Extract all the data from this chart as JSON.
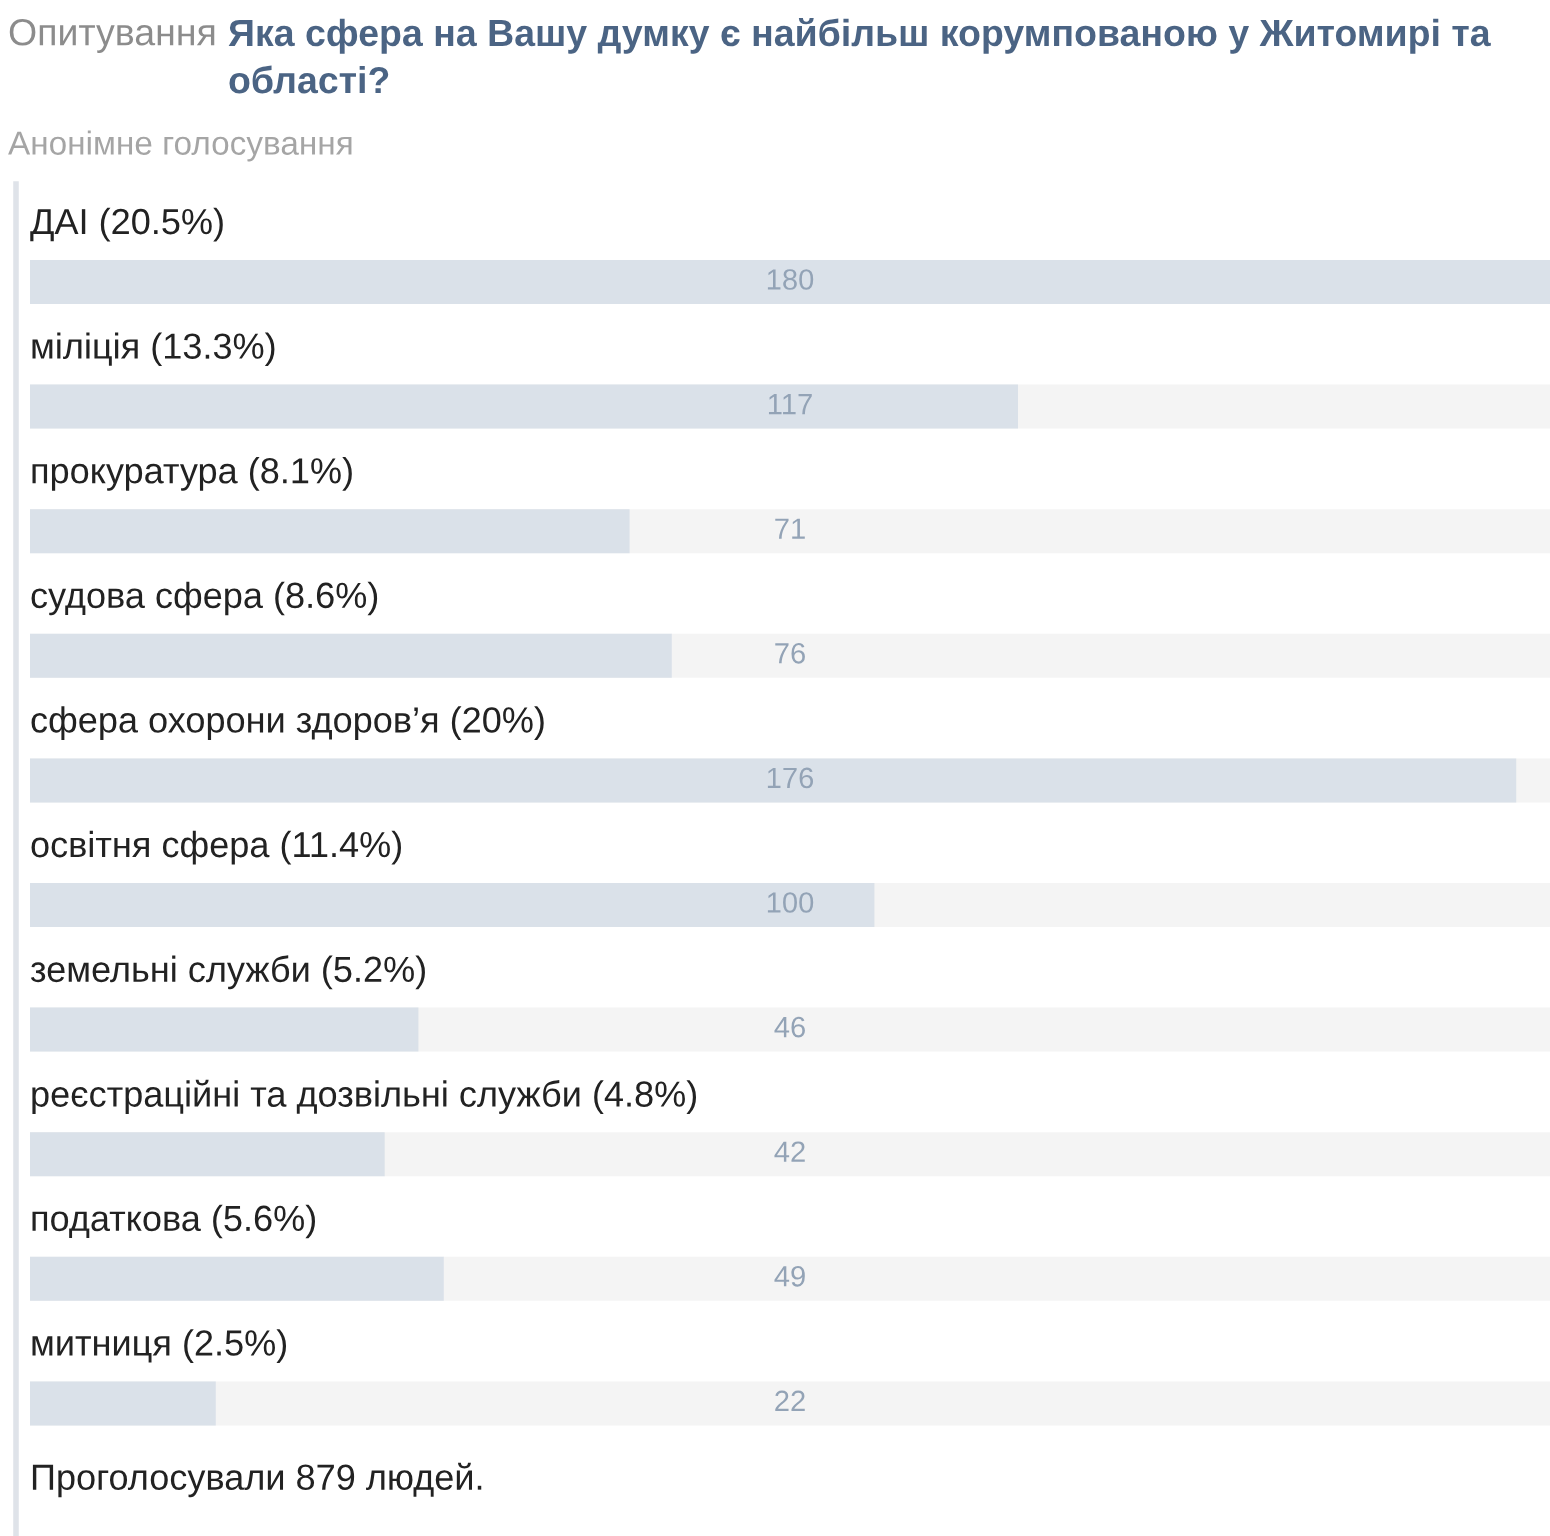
{
  "chart_data": {
    "type": "bar",
    "orientation": "horizontal",
    "title": "Яка сфера на Вашу думку є найбільш корумпованою у Житомирі та області?",
    "subtitle": "Анонімне голосування",
    "categories": [
      "ДАІ (20.5%)",
      "міліція (13.3%)",
      "прокуратура (8.1%)",
      "судова сфера (8.6%)",
      "сфера охорони здоров’я (20%)",
      "освітня сфера (11.4%)",
      "земельні служби (5.2%)",
      "реєстраційні та дозвільні служби (4.8%)",
      "податкова (5.6%)",
      "митниця (2.5%)"
    ],
    "values": [
      180,
      117,
      71,
      76,
      176,
      100,
      46,
      42,
      49,
      22
    ],
    "color": "#dae1e9",
    "xlim": [
      0,
      180
    ],
    "data_labels": true,
    "tick_labels": "y",
    "annotations": [
      "Опитування",
      "Проголосували 879 людей."
    ]
  }
}
